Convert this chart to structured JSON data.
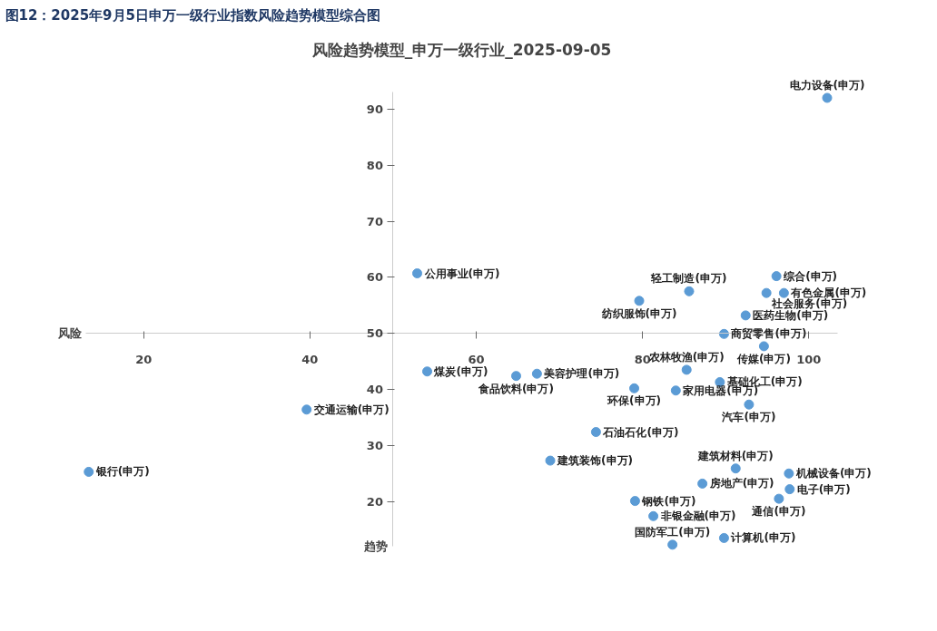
{
  "chart_data": {
    "type": "scatter",
    "title": "图12：2025年9月5日申万一级行业指数风险趋势模型综合图",
    "subtitle": "风险趋势模型_申万一级行业_2025-09-05",
    "xlabel": "风险",
    "ylabel": "趋势",
    "xlim": [
      13,
      103.5
    ],
    "ylim": [
      12,
      93
    ],
    "xticks": [
      20,
      40,
      60,
      80,
      100
    ],
    "yticks": [
      20,
      30,
      40,
      50,
      60,
      70,
      80,
      90
    ],
    "grid": false,
    "legend": false,
    "marker": "circle",
    "series": [
      {
        "name": "电力设备(申万)",
        "color": "#5b9bd5",
        "x": [
          102.2
        ],
        "values": [
          92.0
        ]
      },
      {
        "name": "公用事业(申万)",
        "color": "#5b9bd5",
        "x": [
          52.9
        ],
        "values": [
          60.7
        ]
      },
      {
        "name": "综合(申万)",
        "color": "#5b9bd5",
        "x": [
          96.1
        ],
        "values": [
          60.2
        ]
      },
      {
        "name": "社会服务(申万)",
        "color": "#5b9bd5",
        "x": [
          94.9
        ],
        "values": [
          57.2
        ]
      },
      {
        "name": "有色金属(申万)",
        "color": "#5b9bd5",
        "x": [
          97.0
        ],
        "values": [
          57.2
        ]
      },
      {
        "name": "轻工制造(申万)",
        "color": "#5b9bd5",
        "x": [
          85.6
        ],
        "values": [
          57.5
        ]
      },
      {
        "name": "纺织服饰(申万)",
        "color": "#5b9bd5",
        "x": [
          79.6
        ],
        "values": [
          55.8
        ]
      },
      {
        "name": "商贸零售(申万)",
        "color": "#5b9bd5",
        "x": [
          89.8
        ],
        "values": [
          49.9
        ]
      },
      {
        "name": "医药生物(申万)",
        "color": "#5b9bd5",
        "x": [
          92.4
        ],
        "values": [
          53.2
        ]
      },
      {
        "name": "传媒(申万)",
        "color": "#5b9bd5",
        "x": [
          94.6
        ],
        "values": [
          47.7
        ]
      },
      {
        "name": "煤炭(申万)",
        "color": "#5b9bd5",
        "x": [
          54.1
        ],
        "values": [
          43.2
        ]
      },
      {
        "name": "食品饮料(申万)",
        "color": "#5b9bd5",
        "x": [
          64.8
        ],
        "values": [
          42.4
        ]
      },
      {
        "name": "美容护理(申万)",
        "color": "#5b9bd5",
        "x": [
          67.3
        ],
        "values": [
          42.8
        ]
      },
      {
        "name": "环保(申万)",
        "color": "#5b9bd5",
        "x": [
          79.0
        ],
        "values": [
          40.2
        ]
      },
      {
        "name": "农林牧渔(申万)",
        "color": "#5b9bd5",
        "x": [
          85.3
        ],
        "values": [
          43.5
        ]
      },
      {
        "name": "家用电器(申万)",
        "color": "#5b9bd5",
        "x": [
          84.0
        ],
        "values": [
          39.8
        ]
      },
      {
        "name": "基础化工(申万)",
        "color": "#5b9bd5",
        "x": [
          89.3
        ],
        "values": [
          41.3
        ]
      },
      {
        "name": "汽车(申万)",
        "color": "#5b9bd5",
        "x": [
          92.8
        ],
        "values": [
          37.3
        ]
      },
      {
        "name": "银行(申万)",
        "color": "#5b9bd5",
        "x": [
          13.4
        ],
        "values": [
          25.3
        ]
      },
      {
        "name": "交通运输(申万)",
        "color": "#5b9bd5",
        "x": [
          39.6
        ],
        "values": [
          36.4
        ]
      },
      {
        "name": "石油石化(申万)",
        "color": "#5b9bd5",
        "x": [
          74.4
        ],
        "values": [
          32.4
        ]
      },
      {
        "name": "建筑装饰(申万)",
        "color": "#5b9bd5",
        "x": [
          68.9
        ],
        "values": [
          27.3
        ]
      },
      {
        "name": "钢铁(申万)",
        "color": "#5b9bd5",
        "x": [
          79.1
        ],
        "values": [
          20.1
        ]
      },
      {
        "name": "非银金融(申万)",
        "color": "#5b9bd5",
        "x": [
          81.3
        ],
        "values": [
          17.4
        ]
      },
      {
        "name": "建筑材料(申万)",
        "color": "#5b9bd5",
        "x": [
          91.2
        ],
        "values": [
          25.9
        ]
      },
      {
        "name": "房地产(申万)",
        "color": "#5b9bd5",
        "x": [
          87.2
        ],
        "values": [
          23.2
        ]
      },
      {
        "name": "机械设备(申万)",
        "color": "#5b9bd5",
        "x": [
          97.6
        ],
        "values": [
          25.0
        ]
      },
      {
        "name": "电子(申万)",
        "color": "#5b9bd5",
        "x": [
          97.7
        ],
        "values": [
          22.2
        ]
      },
      {
        "name": "通信(申万)",
        "color": "#5b9bd5",
        "x": [
          96.4
        ],
        "values": [
          20.5
        ]
      },
      {
        "name": "计算机(申万)",
        "color": "#5b9bd5",
        "x": [
          89.8
        ],
        "values": [
          13.5
        ]
      },
      {
        "name": "国防军工(申万)",
        "color": "#5b9bd5",
        "x": [
          83.6
        ],
        "values": [
          12.3
        ]
      }
    ]
  }
}
